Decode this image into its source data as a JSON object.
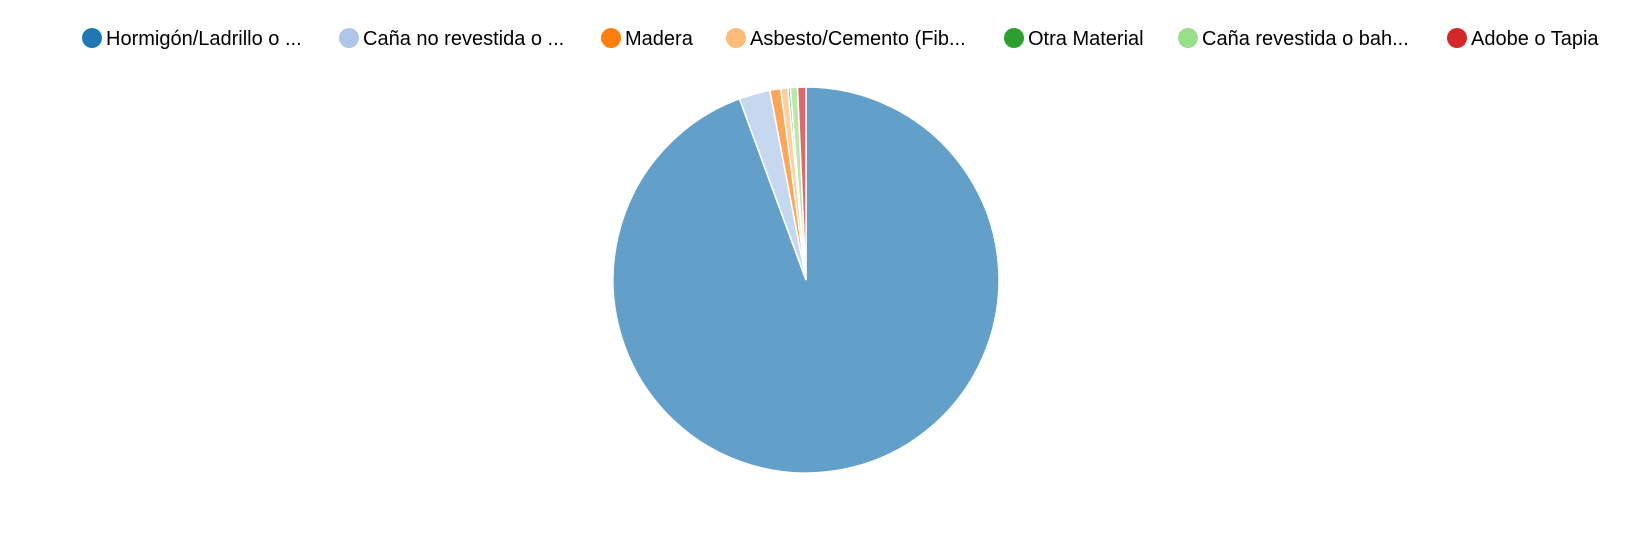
{
  "chart_data": {
    "type": "pie",
    "title": "",
    "legend_position": "top",
    "slices": [
      {
        "label": "Hormigón/Ladrillo o ...",
        "value": 94.4,
        "color": "#1f77b4"
      },
      {
        "label": "Caña no revestida o ...",
        "value": 2.6,
        "color": "#aec7e8"
      },
      {
        "label": "Madera",
        "value": 0.9,
        "color": "#ff7f0e"
      },
      {
        "label": "Asbesto/Cemento (Fib...",
        "value": 0.6,
        "color": "#ffbb78"
      },
      {
        "label": "Otra Material",
        "value": 0.2,
        "color": "#2ca02c"
      },
      {
        "label": "Caña revestida o bah...",
        "value": 0.6,
        "color": "#98df8a"
      },
      {
        "label": "Adobe o Tapia",
        "value": 0.7,
        "color": "#d62728"
      }
    ]
  }
}
